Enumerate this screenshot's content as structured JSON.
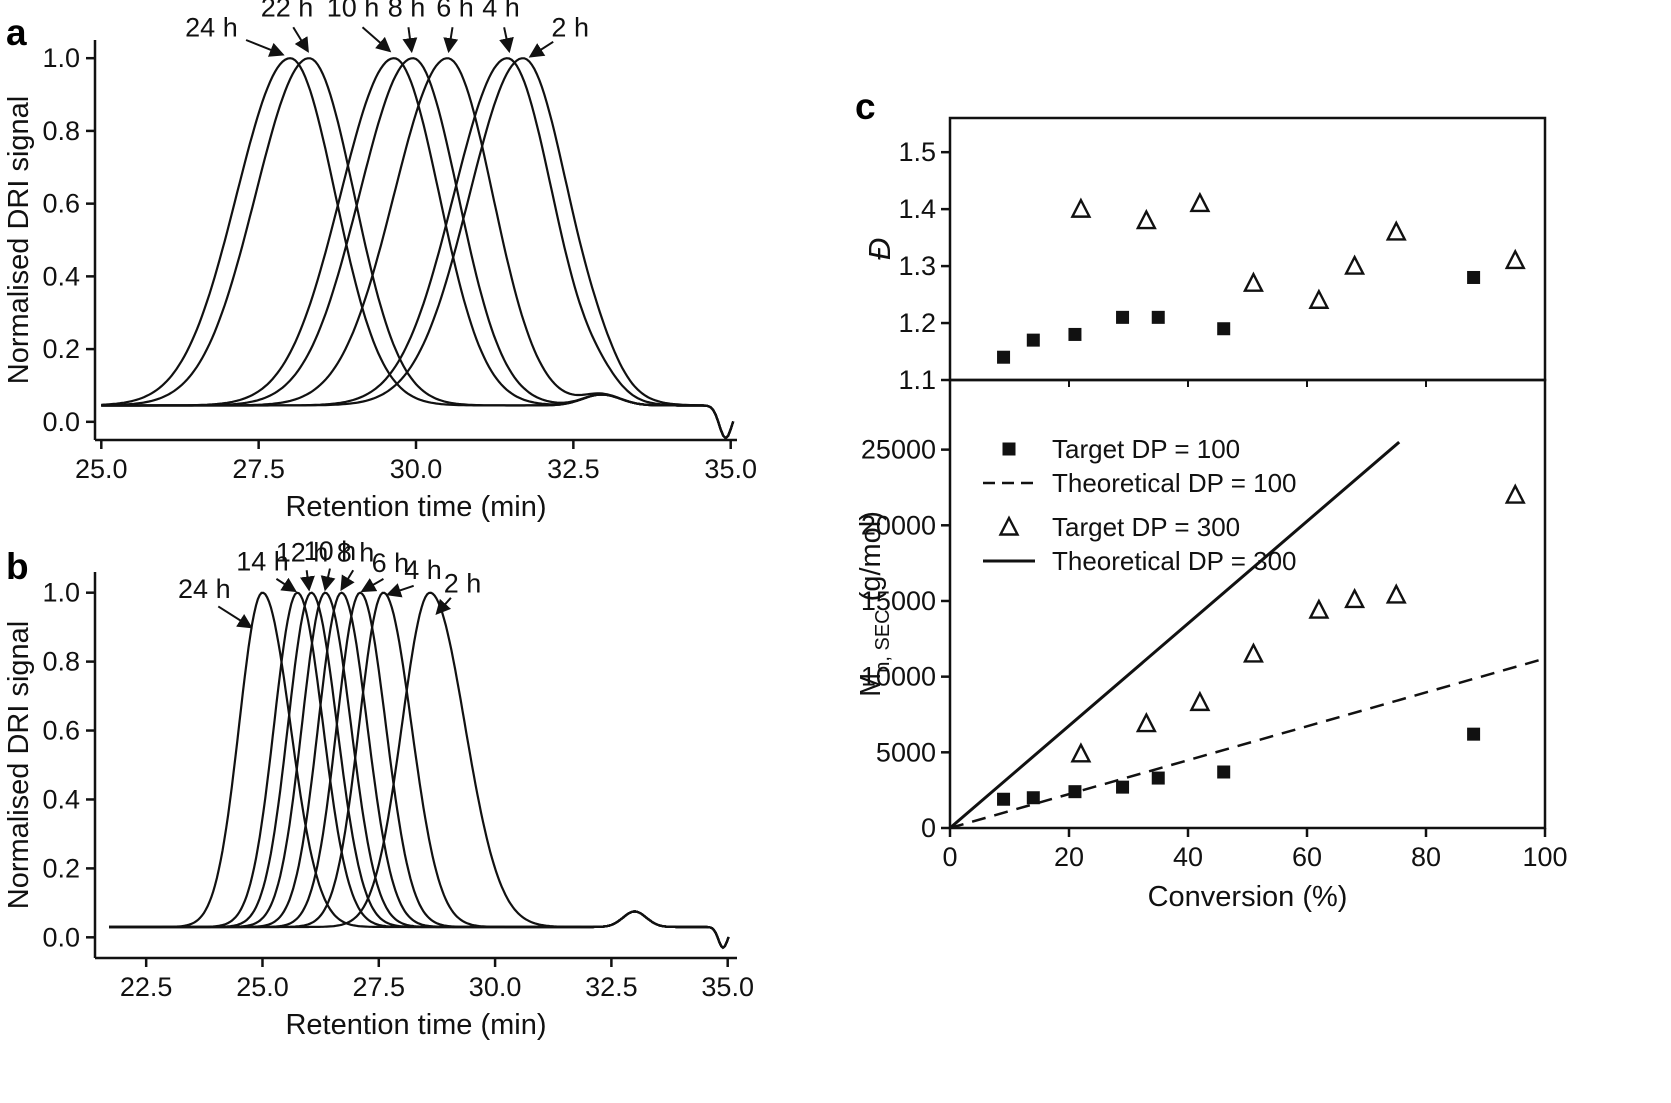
{
  "figure": {
    "panels": [
      {
        "label": "a"
      },
      {
        "label": "b"
      },
      {
        "label": "c"
      }
    ]
  },
  "chart_data": [
    {
      "id": "a",
      "type": "line",
      "panel_label": "a",
      "xlabel": "Retention time (min)",
      "ylabel": "Normalised DRI signal",
      "xlim": [
        24.9,
        35.1
      ],
      "ylim": [
        -0.05,
        1.05
      ],
      "x_range": [
        25.0,
        35.05
      ],
      "baseline": 0.045,
      "grid": false,
      "xticks": [
        {
          "v": 25.0,
          "label": "25.0"
        },
        {
          "v": 27.5,
          "label": "27.5"
        },
        {
          "v": 30.0,
          "label": "30.0"
        },
        {
          "v": 32.5,
          "label": "32.5"
        },
        {
          "v": 35.0,
          "label": "35.0"
        }
      ],
      "yticks": [
        {
          "v": 0.0,
          "label": "0.0"
        },
        {
          "v": 0.2,
          "label": "0.2"
        },
        {
          "v": 0.4,
          "label": "0.4"
        },
        {
          "v": 0.6,
          "label": "0.6"
        },
        {
          "v": 0.8,
          "label": "0.8"
        },
        {
          "v": 1.0,
          "label": "1.0"
        }
      ],
      "curves": [
        {
          "label": "24 h",
          "peak": 28.0,
          "sl": 0.85,
          "sr": 0.72
        },
        {
          "label": "22 h",
          "peak": 28.3,
          "sl": 0.85,
          "sr": 0.72
        },
        {
          "label": "10 h",
          "peak": 29.65,
          "sl": 0.85,
          "sr": 0.72
        },
        {
          "label": "8 h",
          "peak": 29.95,
          "sl": 0.85,
          "sr": 0.72
        },
        {
          "label": "6 h",
          "peak": 30.5,
          "sl": 0.85,
          "sr": 0.72
        },
        {
          "label": "4 h",
          "peak": 31.45,
          "sl": 0.85,
          "sr": 0.72
        },
        {
          "label": "2 h",
          "peak": 31.7,
          "sl": 0.85,
          "sr": 0.72
        }
      ],
      "bumps": [
        {
          "x": 32.95,
          "s": 0.3,
          "h": 0.03
        },
        {
          "x": 34.92,
          "s": 0.1,
          "h": -0.09
        }
      ],
      "annotations": [
        {
          "label": "24 h",
          "text": [
            26.75,
            1.06
          ],
          "arrow": [
            27.3,
            1.05,
            27.88,
            1.01
          ]
        },
        {
          "label": "22 h",
          "text": [
            27.95,
            1.115
          ],
          "arrow": [
            28.05,
            1.085,
            28.28,
            1.02
          ]
        },
        {
          "label": "10 h",
          "text": [
            29.0,
            1.115
          ],
          "arrow": [
            29.15,
            1.085,
            29.58,
            1.02
          ]
        },
        {
          "label": "8 h",
          "text": [
            29.85,
            1.115
          ],
          "arrow": [
            29.88,
            1.085,
            29.93,
            1.02
          ]
        },
        {
          "label": "6 h",
          "text": [
            30.62,
            1.115
          ],
          "arrow": [
            30.58,
            1.085,
            30.52,
            1.02
          ]
        },
        {
          "label": "4 h",
          "text": [
            31.35,
            1.115
          ],
          "arrow": [
            31.4,
            1.085,
            31.48,
            1.02
          ]
        },
        {
          "label": "2 h",
          "text": [
            32.45,
            1.06
          ],
          "arrow": [
            32.18,
            1.045,
            31.82,
            1.005
          ]
        }
      ]
    },
    {
      "id": "b",
      "type": "line",
      "panel_label": "b",
      "xlabel": "Retention time (min)",
      "ylabel": "Normalised DRI signal",
      "xlim": [
        21.4,
        35.2
      ],
      "ylim": [
        -0.06,
        1.06
      ],
      "x_range": [
        21.7,
        35.05
      ],
      "baseline": 0.03,
      "grid": false,
      "xticks": [
        {
          "v": 22.5,
          "label": "22.5"
        },
        {
          "v": 25.0,
          "label": "25.0"
        },
        {
          "v": 27.5,
          "label": "27.5"
        },
        {
          "v": 30.0,
          "label": "30.0"
        },
        {
          "v": 32.5,
          "label": "32.5"
        },
        {
          "v": 35.0,
          "label": "35.0"
        }
      ],
      "yticks": [
        {
          "v": 0.0,
          "label": "0.0"
        },
        {
          "v": 0.2,
          "label": "0.2"
        },
        {
          "v": 0.4,
          "label": "0.4"
        },
        {
          "v": 0.6,
          "label": "0.6"
        },
        {
          "v": 0.8,
          "label": "0.8"
        },
        {
          "v": 1.0,
          "label": "1.0"
        }
      ],
      "curves": [
        {
          "label": "24 h",
          "peak": 25.0,
          "sl": 0.5,
          "sr": 0.6
        },
        {
          "label": "14 h",
          "peak": 25.75,
          "sl": 0.5,
          "sr": 0.55
        },
        {
          "label": "12 h",
          "peak": 26.05,
          "sl": 0.5,
          "sr": 0.55
        },
        {
          "label": "10 h",
          "peak": 26.35,
          "sl": 0.5,
          "sr": 0.55
        },
        {
          "label": "8 h",
          "peak": 26.7,
          "sl": 0.5,
          "sr": 0.55
        },
        {
          "label": "6 h",
          "peak": 27.1,
          "sl": 0.5,
          "sr": 0.55
        },
        {
          "label": "4 h",
          "peak": 27.6,
          "sl": 0.52,
          "sr": 0.6
        },
        {
          "label": "2 h",
          "peak": 28.6,
          "sl": 0.6,
          "sr": 0.75
        }
      ],
      "bumps": [
        {
          "x": 33.0,
          "s": 0.25,
          "h": 0.045
        },
        {
          "x": 34.9,
          "s": 0.1,
          "h": -0.06
        }
      ],
      "annotations": [
        {
          "label": "24 h",
          "text": [
            23.75,
            0.985
          ],
          "arrow": [
            24.05,
            0.96,
            24.75,
            0.9
          ]
        },
        {
          "label": "14 h",
          "text": [
            25.0,
            1.065
          ],
          "arrow": [
            25.3,
            1.04,
            25.7,
            1.005
          ]
        },
        {
          "label": "12 h",
          "text": [
            25.85,
            1.09
          ],
          "arrow": [
            25.95,
            1.065,
            26.0,
            1.01
          ]
        },
        {
          "label": "10 h",
          "text": [
            26.45,
            1.095
          ],
          "arrow": [
            26.45,
            1.07,
            26.35,
            1.01
          ]
        },
        {
          "label": "8 h",
          "text": [
            27.0,
            1.09
          ],
          "arrow": [
            26.95,
            1.065,
            26.7,
            1.01
          ]
        },
        {
          "label": "6 h",
          "text": [
            27.75,
            1.06
          ],
          "arrow": [
            27.6,
            1.04,
            27.15,
            1.005
          ]
        },
        {
          "label": "4 h",
          "text": [
            28.45,
            1.04
          ],
          "arrow": [
            28.25,
            1.02,
            27.7,
            0.995
          ]
        },
        {
          "label": "2 h",
          "text": [
            29.3,
            1.0
          ],
          "arrow": [
            29.05,
            0.985,
            28.75,
            0.94
          ]
        }
      ]
    },
    {
      "id": "c",
      "panel_label": "c",
      "subplots": [
        {
          "id": "dispersity",
          "type": "scatter",
          "ylabel": "Đ",
          "xlim": [
            0,
            100
          ],
          "ylim": [
            1.1,
            1.56
          ],
          "grid": false,
          "yticks": [
            {
              "v": 1.1,
              "label": "1.1"
            },
            {
              "v": 1.2,
              "label": "1.2"
            },
            {
              "v": 1.3,
              "label": "1.3"
            },
            {
              "v": 1.4,
              "label": "1.4"
            },
            {
              "v": 1.5,
              "label": "1.5"
            }
          ],
          "xticks_unlabeled": [
            20,
            40,
            60,
            80
          ],
          "series": [
            {
              "name": "Target DP = 100",
              "marker": "square",
              "points": [
                [
                  9,
                  1.14
                ],
                [
                  14,
                  1.17
                ],
                [
                  21,
                  1.18
                ],
                [
                  29,
                  1.21
                ],
                [
                  35,
                  1.21
                ],
                [
                  46,
                  1.19
                ],
                [
                  88,
                  1.28
                ]
              ]
            },
            {
              "name": "Target DP = 300",
              "marker": "triangle",
              "points": [
                [
                  22,
                  1.4
                ],
                [
                  33,
                  1.38
                ],
                [
                  42,
                  1.41
                ],
                [
                  51,
                  1.27
                ],
                [
                  62,
                  1.24
                ],
                [
                  68,
                  1.3
                ],
                [
                  75,
                  1.36
                ],
                [
                  95,
                  1.31
                ]
              ]
            }
          ]
        },
        {
          "id": "mn",
          "type": "scatter",
          "ylabel_parts": [
            {
              "t": "M",
              "size": 29,
              "sub": false
            },
            {
              "t": "n, SEC",
              "size": 20,
              "sub": true
            },
            {
              "t": " (g/mol)",
              "size": 29,
              "sub": false
            }
          ],
          "xlabel": "Conversion (%)",
          "xlim": [
            0,
            100
          ],
          "ylim": [
            0,
            29600
          ],
          "grid": false,
          "yticks": [
            {
              "v": 0,
              "label": "0"
            },
            {
              "v": 5000,
              "label": "5000"
            },
            {
              "v": 10000,
              "label": "10000"
            },
            {
              "v": 15000,
              "label": "15000"
            },
            {
              "v": 20000,
              "label": "20000"
            },
            {
              "v": 25000,
              "label": "25000"
            }
          ],
          "xticks": [
            {
              "v": 0,
              "label": "0"
            },
            {
              "v": 20,
              "label": "20"
            },
            {
              "v": 40,
              "label": "40"
            },
            {
              "v": 60,
              "label": "60"
            },
            {
              "v": 80,
              "label": "80"
            },
            {
              "v": 100,
              "label": "100"
            }
          ],
          "series": [
            {
              "name": "Theoretical DP = 300",
              "line": "solid",
              "points": [
                [
                  0,
                  0
                ],
                [
                  75.5,
                  25500
                ]
              ]
            },
            {
              "name": "Theoretical DP = 100",
              "line": "dashed",
              "points": [
                [
                  0,
                  0
                ],
                [
                  100,
                  11200
                ]
              ]
            },
            {
              "name": "Target DP = 100",
              "marker": "square",
              "points": [
                [
                  9,
                  1900
                ],
                [
                  14,
                  2000
                ],
                [
                  21,
                  2400
                ],
                [
                  29,
                  2700
                ],
                [
                  35,
                  3300
                ],
                [
                  46,
                  3700
                ],
                [
                  88,
                  6200
                ]
              ]
            },
            {
              "name": "Target DP = 300",
              "marker": "triangle",
              "points": [
                [
                  22,
                  4900
                ],
                [
                  33,
                  6900
                ],
                [
                  42,
                  8300
                ],
                [
                  51,
                  11500
                ],
                [
                  62,
                  14400
                ],
                [
                  68,
                  15100
                ],
                [
                  75,
                  15400
                ],
                [
                  95,
                  22000
                ]
              ]
            }
          ],
          "legend": [
            {
              "swatch": "square",
              "label": "Target DP = 100"
            },
            {
              "swatch": "dashed",
              "label": "Theoretical DP = 100"
            },
            {
              "swatch": "triangle",
              "label": "Target DP = 300"
            },
            {
              "swatch": "solid",
              "label": "Theoretical DP = 300"
            }
          ]
        }
      ]
    }
  ],
  "colors": {
    "ink": "#111111",
    "background": "#ffffff"
  }
}
